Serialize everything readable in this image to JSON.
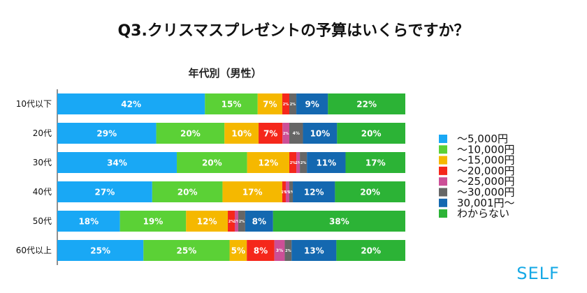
{
  "chart_data": {
    "type": "bar",
    "orientation": "horizontal",
    "stacked": true,
    "normalized": true,
    "title": "Q3.クリスマスプレゼントの予算はいくらですか？",
    "subtitle": "年代別（男性）",
    "categories": [
      "10代以下",
      "20代",
      "30代",
      "40代",
      "50代",
      "60代以上"
    ],
    "series": [
      {
        "name": "〜5,000円",
        "color": "#19a8f5",
        "values": [
          42,
          29,
          34,
          27,
          18,
          25
        ]
      },
      {
        "name": "〜10,000円",
        "color": "#5bd136",
        "values": [
          15,
          20,
          20,
          20,
          19,
          25
        ]
      },
      {
        "name": "〜15,000円",
        "color": "#f5b800",
        "values": [
          7,
          10,
          12,
          17,
          12,
          5
        ]
      },
      {
        "name": "〜20,000円",
        "color": "#f5271b",
        "values": [
          2,
          7,
          2,
          1,
          2,
          8
        ]
      },
      {
        "name": "〜25,000円",
        "color": "#cc4f97",
        "values": [
          0,
          2,
          1,
          1,
          1,
          3
        ]
      },
      {
        "name": "〜30,000円",
        "color": "#666666",
        "values": [
          2,
          4,
          2,
          1,
          2,
          2
        ]
      },
      {
        "name": "30,001円〜",
        "color": "#1468b0",
        "values": [
          9,
          10,
          11,
          12,
          8,
          13
        ]
      },
      {
        "name": "わからない",
        "color": "#2cb336",
        "values": [
          22,
          20,
          17,
          20,
          38,
          20
        ]
      }
    ],
    "value_labels": [
      [
        "42%",
        "15%",
        "7%",
        "2%",
        "",
        "2%",
        "9%",
        "22%"
      ],
      [
        "29%",
        "20%",
        "10%",
        "7%",
        "2%",
        "4%",
        "10%",
        "20%"
      ],
      [
        "34%",
        "20%",
        "12%",
        "2%",
        "1%",
        "2%",
        "11%",
        "17%"
      ],
      [
        "27%",
        "20%",
        "17%",
        "1%",
        "1%",
        "1%",
        "12%",
        "20%"
      ],
      [
        "18%",
        "19%",
        "12%",
        "2%",
        "1%",
        "2%",
        "8%",
        "38%"
      ],
      [
        "25%",
        "25%",
        "5%",
        "8%",
        "3%",
        "2%",
        "13%",
        "20%"
      ]
    ],
    "legend_position": "right",
    "grid": false
  },
  "brand": {
    "logo_text": "SELF",
    "color": "#15a9e6"
  }
}
